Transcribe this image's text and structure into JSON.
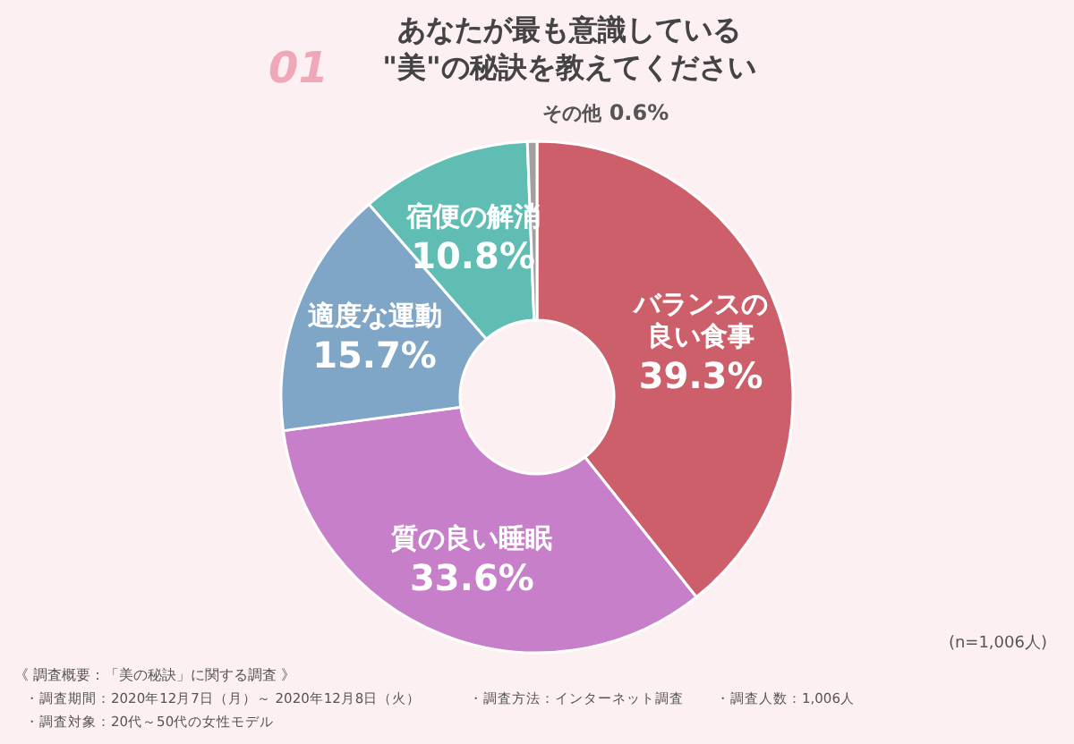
{
  "chart_data": {
    "type": "donut",
    "title": "あなたが最も意識している\n\"美\"の秘訣を教えてください",
    "categories": [
      "バランスの良い食事",
      "質の良い睡眠",
      "適度な運動",
      "宿便の解消",
      "その他"
    ],
    "values": [
      39.3,
      33.6,
      15.7,
      10.8,
      0.6
    ],
    "colors": [
      "#cd5f6b",
      "#c67fc8",
      "#7fa6c6",
      "#60bdb4",
      "#a0a0a0"
    ],
    "value_labels": [
      "39.3%",
      "33.6%",
      "15.7%",
      "10.8%",
      "0.6%"
    ],
    "annotations": [
      "01",
      "(n=1,006人)",
      "《 調査概要：「美の秘訣」に関する調査 》",
      "・調査期間：2020年12月7日（月）～ 2020年12月8日（火）",
      "・調査対象：20代～50代の女性モデル",
      "・調査方法：インターネット調査",
      "・調査人数：1,006人"
    ]
  }
}
